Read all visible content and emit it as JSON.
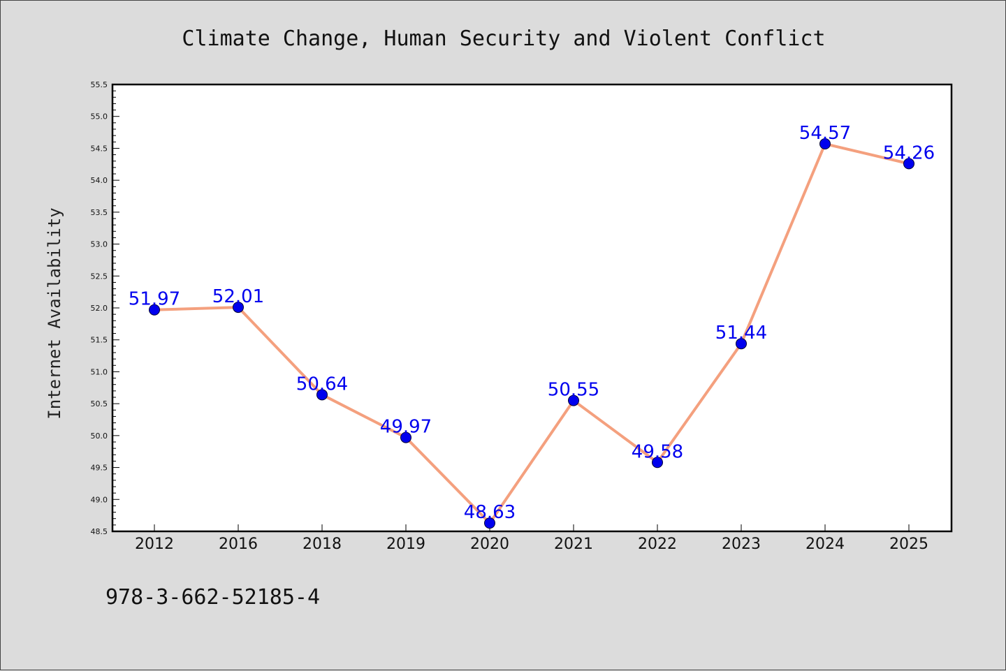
{
  "chart_data": {
    "type": "line",
    "title": "Climate Change, Human Security and Violent Conflict",
    "ylabel": "Internet Availability",
    "xlabel": "",
    "categories": [
      "2012",
      "2016",
      "2018",
      "2019",
      "2020",
      "2021",
      "2022",
      "2023",
      "2024",
      "2025"
    ],
    "values": [
      51.97,
      52.01,
      50.64,
      49.97,
      48.63,
      50.55,
      49.58,
      51.44,
      54.57,
      54.26
    ],
    "data_labels": [
      "51.97",
      "52.01",
      "50.64",
      "49.97",
      "48.63",
      "50.55",
      "49.58",
      "51.44",
      "54.57",
      "54.26"
    ],
    "ylim": [
      48.5,
      55.5
    ],
    "yticks": [
      "48.5",
      "49.0",
      "49.5",
      "50.0",
      "50.5",
      "51.0",
      "51.5",
      "52.0",
      "52.5",
      "53.0",
      "53.5",
      "54.0",
      "54.5",
      "55.0",
      "55.5"
    ],
    "grid": false,
    "legend": "none",
    "line_color": "#f4a07e",
    "marker_color": "#0000ee",
    "label_color": "#0000ee"
  },
  "footer": {
    "isbn": "978-3-662-52185-4"
  }
}
